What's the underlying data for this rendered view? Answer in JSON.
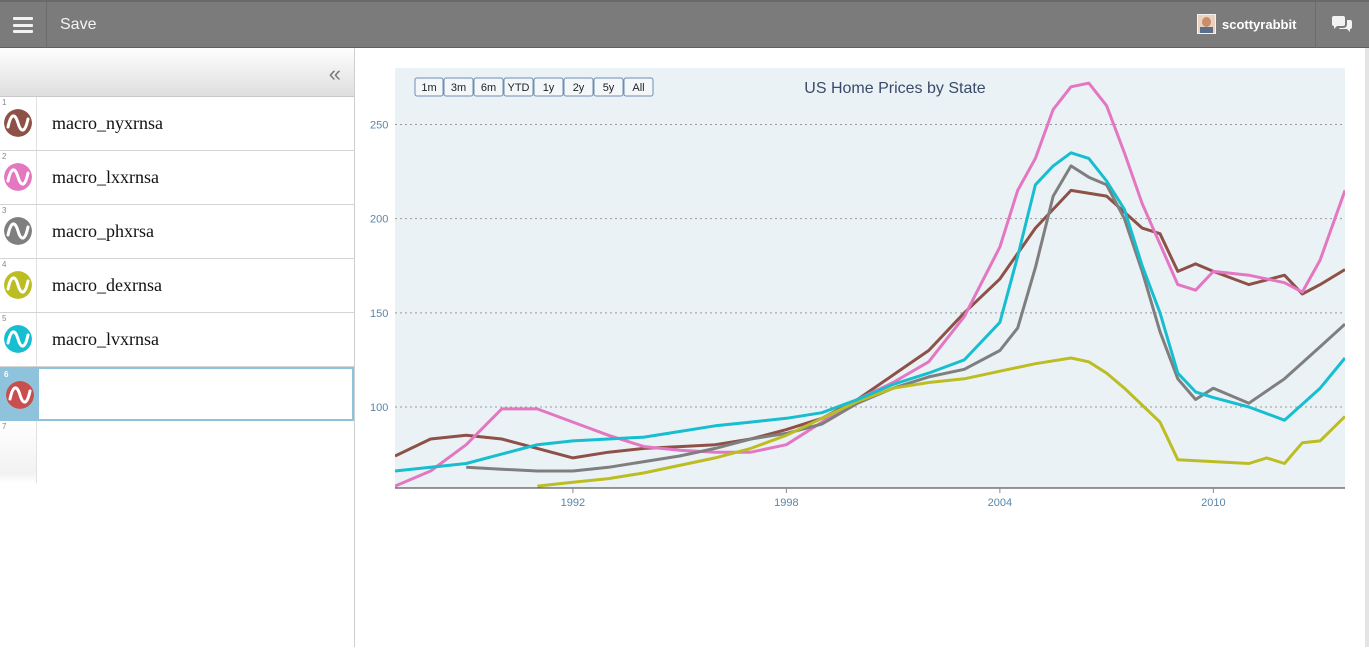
{
  "toolbar": {
    "save_label": "Save",
    "username": "scottyrabbit"
  },
  "sidebar": {
    "items": [
      {
        "num": "1",
        "label": "macro_nyxrnsa",
        "color": "#8d5148"
      },
      {
        "num": "2",
        "label": "macro_lxxrnsa",
        "color": "#e377c2"
      },
      {
        "num": "3",
        "label": "macro_phxrsa",
        "color": "#7f7f7f"
      },
      {
        "num": "4",
        "label": "macro_dexrnsa",
        "color": "#bcbd22"
      },
      {
        "num": "5",
        "label": "macro_lvxrnsa",
        "color": "#17becf"
      },
      {
        "num": "6",
        "label": "",
        "color": "#c94f4f"
      },
      {
        "num": "7",
        "label": ""
      }
    ]
  },
  "range_buttons": [
    "1m",
    "3m",
    "6m",
    "YTD",
    "1y",
    "2y",
    "5y",
    "All"
  ],
  "colors": {
    "topbar": "#7b7b7b",
    "plot_background": "#ebf2f6",
    "axis_label": "#5b86a8",
    "selected_row": "#8fc3dc"
  },
  "chart_data": {
    "type": "line",
    "title": "US Home Prices by State",
    "xlabel": "",
    "ylabel": "",
    "xlim": [
      1987,
      2013.7
    ],
    "ylim": [
      57,
      280
    ],
    "x_ticks": [
      "1992",
      "1998",
      "2004",
      "2010"
    ],
    "y_ticks": [
      "100",
      "150",
      "200",
      "250"
    ],
    "grid": "horizontal dashed",
    "series": [
      {
        "color": "#8d5148",
        "x": [
          1987,
          1988,
          1989,
          1990,
          1991,
          1992,
          1993,
          1994,
          1995,
          1996,
          1997,
          1998,
          1999,
          2000,
          2001,
          2002,
          2003,
          2004,
          2005,
          2006,
          2007,
          2008,
          2008.5,
          2009,
          2009.5,
          2010,
          2011,
          2012,
          2012.5,
          2013,
          2013.7
        ],
        "y": [
          74,
          83,
          85,
          83,
          78,
          73,
          76,
          78,
          79,
          80,
          83,
          88,
          94,
          104,
          117,
          130,
          150,
          168,
          195,
          215,
          212,
          195,
          192,
          172,
          176,
          172,
          165,
          170,
          160,
          165,
          173
        ]
      },
      {
        "color": "#e377c2",
        "x": [
          1987,
          1988,
          1989,
          1990,
          1991,
          1992,
          1993,
          1994,
          1995,
          1996,
          1997,
          1998,
          1999,
          2000,
          2001,
          2002,
          2003,
          2004,
          2004.5,
          2005,
          2005.5,
          2006,
          2006.5,
          2007,
          2007.5,
          2008,
          2009,
          2009.5,
          2010,
          2011,
          2012,
          2012.5,
          2013,
          2013.7
        ],
        "y": [
          58,
          66,
          80,
          99,
          99,
          92,
          85,
          79,
          77,
          76,
          76,
          80,
          92,
          104,
          113,
          124,
          148,
          185,
          215,
          232,
          258,
          270,
          272,
          260,
          235,
          208,
          165,
          162,
          172,
          170,
          166,
          161,
          178,
          215
        ]
      },
      {
        "color": "#7f7f7f",
        "x": [
          1989,
          1990,
          1991,
          1992,
          1993,
          1994,
          1995,
          1996,
          1997,
          1998,
          1999,
          2000,
          2001,
          2002,
          2003,
          2004,
          2004.5,
          2005,
          2005.5,
          2006,
          2006.5,
          2007,
          2007.5,
          2008,
          2008.5,
          2009,
          2009.5,
          2010,
          2011,
          2012,
          2013,
          2013.7
        ],
        "y": [
          68,
          67,
          66,
          66,
          68,
          71,
          74,
          78,
          83,
          86,
          91,
          102,
          110,
          116,
          120,
          130,
          142,
          174,
          212,
          228,
          222,
          218,
          200,
          172,
          140,
          115,
          104,
          110,
          102,
          115,
          132,
          144
        ]
      },
      {
        "color": "#bcbd22",
        "x": [
          1991,
          1992,
          1993,
          1994,
          1995,
          1996,
          1997,
          1998,
          1999,
          2000,
          2001,
          2002,
          2003,
          2004,
          2005,
          2006,
          2006.5,
          2007,
          2007.5,
          2008,
          2008.5,
          2009,
          2010,
          2011,
          2011.5,
          2012,
          2012.5,
          2013,
          2013.7
        ],
        "y": [
          58,
          60,
          62,
          65,
          69,
          73,
          78,
          85,
          94,
          103,
          110,
          113,
          115,
          119,
          123,
          126,
          124,
          118,
          110,
          101,
          92,
          72,
          71,
          70,
          73,
          70,
          81,
          82,
          95
        ]
      },
      {
        "color": "#17becf",
        "x": [
          1987,
          1988,
          1989,
          1990,
          1991,
          1992,
          1993,
          1994,
          1995,
          1996,
          1997,
          1998,
          1999,
          2000,
          2001,
          2002,
          2003,
          2004,
          2004.5,
          2005,
          2005.5,
          2006,
          2006.5,
          2007,
          2007.5,
          2008,
          2008.5,
          2009,
          2009.5,
          2010,
          2011,
          2012,
          2013,
          2013.7
        ],
        "y": [
          66,
          68,
          70,
          75,
          80,
          82,
          83,
          84,
          87,
          90,
          92,
          94,
          97,
          104,
          112,
          118,
          125,
          145,
          180,
          218,
          228,
          235,
          232,
          220,
          205,
          175,
          150,
          118,
          108,
          105,
          100,
          93,
          110,
          126
        ]
      }
    ]
  }
}
